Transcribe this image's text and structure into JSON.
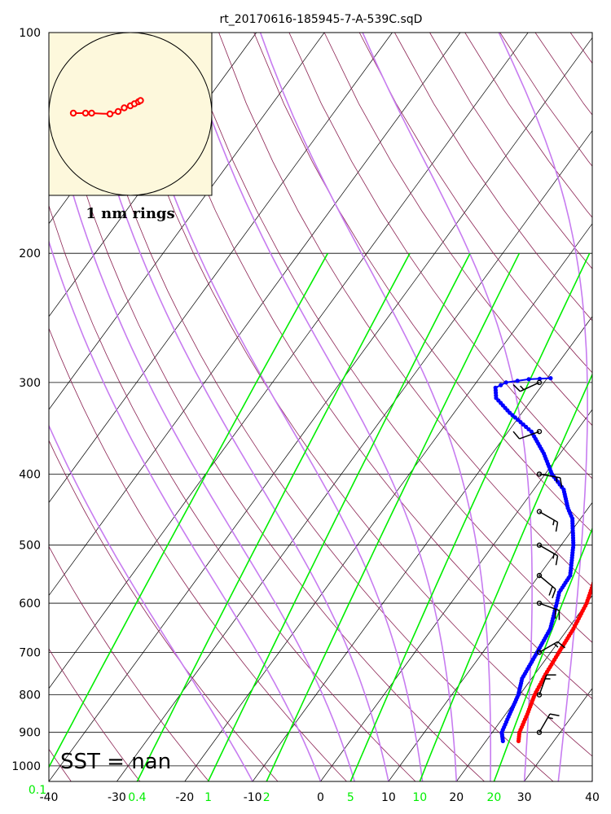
{
  "chart_data": {
    "type": "skew-t",
    "title": "rt_20170616-185945-7-A-539C.sqD",
    "pressure_ticks": [
      100,
      200,
      300,
      400,
      500,
      600,
      700,
      800,
      900,
      1000
    ],
    "temperature_ticks": [
      -40,
      -30,
      -20,
      -10,
      0,
      10,
      20,
      30,
      40
    ],
    "mixing_ratio_ticks": [
      {
        "label": "0.1",
        "value": 0.1
      },
      {
        "label": "0.4",
        "value": 0.4
      },
      {
        "label": "1",
        "value": 1
      },
      {
        "label": "2",
        "value": 2
      },
      {
        "label": "5",
        "value": 5
      },
      {
        "label": "10",
        "value": 10
      },
      {
        "label": "20",
        "value": 20
      }
    ],
    "xlim": [
      -40,
      40
    ],
    "ylim": [
      1050,
      100
    ],
    "y_scale": "log",
    "grid": true,
    "sst_label": "SST =  nan",
    "hodograph_label": "1 nm rings",
    "colors": {
      "temperature": "#ff0000",
      "dewpoint": "#0000ff",
      "isotherm": "#000000",
      "dry_adiabat": "#8b2252",
      "moist_adiabat": "#c77cf0",
      "mixing_ratio": "#00ee00",
      "hodograph_bg": "#fdf8dc",
      "wind_barb": "#000000"
    },
    "series": [
      {
        "name": "temperature",
        "points": [
          {
            "p": 925,
            "t": 24.8
          },
          {
            "p": 900,
            "t": 24.0
          },
          {
            "p": 850,
            "t": 23.2
          },
          {
            "p": 800,
            "t": 22.2
          },
          {
            "p": 750,
            "t": 21.6
          },
          {
            "p": 700,
            "t": 21.2
          },
          {
            "p": 650,
            "t": 20.8
          },
          {
            "p": 600,
            "t": 20.0
          },
          {
            "p": 550,
            "t": 18.4
          },
          {
            "p": 500,
            "t": 16.6
          },
          {
            "p": 475,
            "t": 15.8
          },
          {
            "p": 450,
            "t": 14.4
          },
          {
            "p": 425,
            "t": 13.0
          },
          {
            "p": 400,
            "t": 11.4
          },
          {
            "p": 375,
            "t": 9.3
          },
          {
            "p": 350,
            "t": 7.6
          },
          {
            "p": 325,
            "t": 5.6
          },
          {
            "p": 310,
            "t": 4.4
          },
          {
            "p": 300,
            "t": 3.8
          },
          {
            "p": 295,
            "t": 3.9
          }
        ]
      },
      {
        "name": "dewpoint",
        "points": [
          {
            "p": 925,
            "t": 22.5
          },
          {
            "p": 900,
            "t": 21.4
          },
          {
            "p": 850,
            "t": 20.6
          },
          {
            "p": 800,
            "t": 19.8
          },
          {
            "p": 760,
            "t": 18.6
          },
          {
            "p": 700,
            "t": 18.0
          },
          {
            "p": 650,
            "t": 17.4
          },
          {
            "p": 600,
            "t": 15.6
          },
          {
            "p": 580,
            "t": 14.8
          },
          {
            "p": 550,
            "t": 14.6
          },
          {
            "p": 500,
            "t": 11.8
          },
          {
            "p": 460,
            "t": 8.8
          },
          {
            "p": 445,
            "t": 7.0
          },
          {
            "p": 420,
            "t": 4.4
          },
          {
            "p": 400,
            "t": 1.0
          },
          {
            "p": 375,
            "t": -2.4
          },
          {
            "p": 350,
            "t": -6.6
          },
          {
            "p": 330,
            "t": -11.8
          },
          {
            "p": 315,
            "t": -15.4
          },
          {
            "p": 305,
            "t": -16.6
          },
          {
            "p": 300,
            "t": -15.6
          },
          {
            "p": 297,
            "t": -12.6
          },
          {
            "p": 296,
            "t": -9.5
          }
        ]
      }
    ],
    "wind_profile": [
      {
        "p": 300,
        "speed_kt": 15,
        "dir_deg": 245
      },
      {
        "p": 350,
        "speed_kt": 10,
        "dir_deg": 250
      },
      {
        "p": 400,
        "speed_kt": 15,
        "dir_deg": 100
      },
      {
        "p": 450,
        "speed_kt": 15,
        "dir_deg": 120
      },
      {
        "p": 500,
        "speed_kt": 15,
        "dir_deg": 120
      },
      {
        "p": 550,
        "speed_kt": 20,
        "dir_deg": 130
      },
      {
        "p": 600,
        "speed_kt": 20,
        "dir_deg": 110
      },
      {
        "p": 700,
        "speed_kt": 15,
        "dir_deg": 60
      },
      {
        "p": 800,
        "speed_kt": 15,
        "dir_deg": 20
      },
      {
        "p": 900,
        "speed_kt": 15,
        "dir_deg": 30
      }
    ],
    "hodograph": {
      "ring_nm": 1,
      "points": [
        [
          -1.4,
          0.02
        ],
        [
          -1.1,
          0.02
        ],
        [
          -0.95,
          0.02
        ],
        [
          -0.5,
          0.0
        ],
        [
          -0.3,
          0.06
        ],
        [
          -0.15,
          0.15
        ],
        [
          0.0,
          0.2
        ],
        [
          0.1,
          0.25
        ],
        [
          0.2,
          0.3
        ],
        [
          0.25,
          0.33
        ]
      ]
    }
  }
}
